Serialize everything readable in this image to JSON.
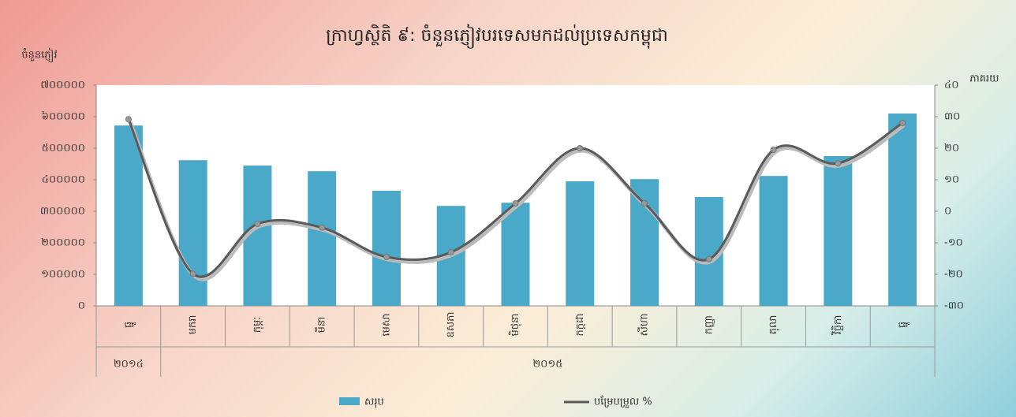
{
  "chart_data": {
    "type": "bar_line",
    "title": "ក្រាហ្វស្ថិតិ ៩: ចំនួនភ្ញៀវបរទេសមកដល់ប្រទេសកម្ពុជា",
    "y_label": "ចំនួនភ្ញៀវ",
    "y2_label": "ភាគរយ",
    "categories": [
      "ធ្នូ",
      "មករា",
      "កុម្ភៈ",
      "មីនា",
      "មេសា",
      "ឧសភា",
      "មិថុនា",
      "កក្កដា",
      "សីហា",
      "កញ្ញា",
      "តុលា",
      "វិច្ឆិកា",
      "ធ្នូ"
    ],
    "groups": [
      "២០១៤",
      "២០១៥"
    ],
    "series": [
      {
        "name": "សរុប",
        "color": "#4aa8c8",
        "kind": "bar",
        "values": [
          572000,
          462000,
          445000,
          427000,
          365000,
          317000,
          327000,
          395000,
          402000,
          345000,
          412000,
          475000,
          610000
        ]
      },
      {
        "name": "បម្រែបម្រួល %",
        "color": "#5a5a5a",
        "kind": "line",
        "axis": "y2",
        "values": [
          29.2,
          -19.8,
          -4,
          -5.2,
          -14.5,
          -13,
          2.5,
          20,
          2.5,
          -15.2,
          19.5,
          15.2,
          28
        ]
      }
    ],
    "ylim": [
      0,
      700000
    ],
    "yticks": [
      {
        "value": 0,
        "label": "០"
      },
      {
        "value": 100000,
        "label": "១០០០០០"
      },
      {
        "value": 200000,
        "label": "២០០០០០"
      },
      {
        "value": 300000,
        "label": "៣០០០០០"
      },
      {
        "value": 400000,
        "label": "៤០០០០០"
      },
      {
        "value": 500000,
        "label": "៥០០០០០"
      },
      {
        "value": 600000,
        "label": "៦០០០០០"
      },
      {
        "value": 700000,
        "label": "៧០០០០០"
      }
    ],
    "y2lim": [
      -30,
      40
    ],
    "y2ticks": [
      {
        "value": -30,
        "label": "-៣០"
      },
      {
        "value": -20,
        "label": "-២០"
      },
      {
        "value": -10,
        "label": "-១០"
      },
      {
        "value": 0,
        "label": "០"
      },
      {
        "value": 10,
        "label": "១០"
      },
      {
        "value": 20,
        "label": "២០"
      },
      {
        "value": 30,
        "label": "៣០"
      },
      {
        "value": 40,
        "label": "៤០"
      }
    ],
    "grid": false,
    "legend": "bottom"
  }
}
